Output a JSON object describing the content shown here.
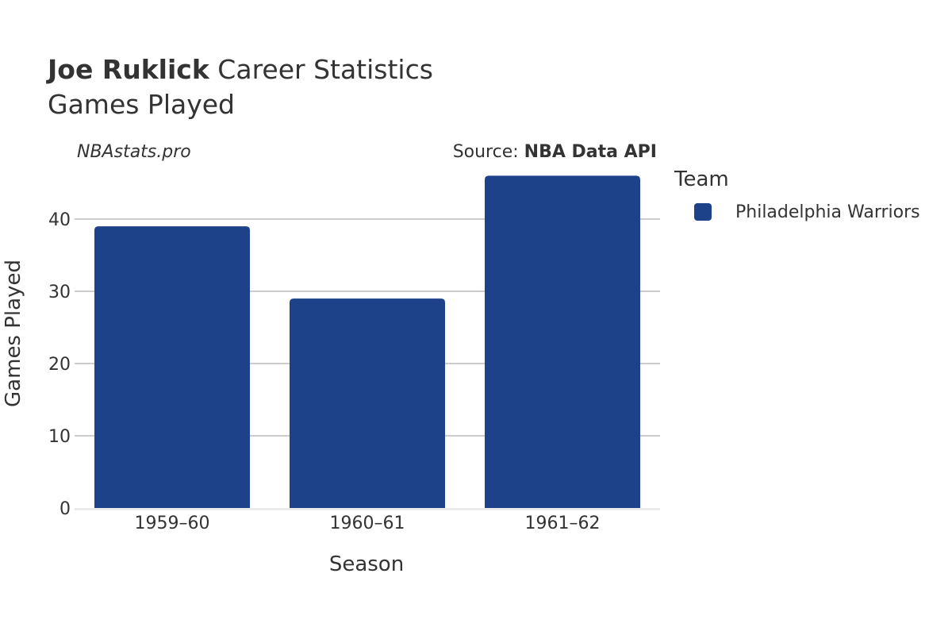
{
  "header": {
    "player_name": "Joe Ruklick",
    "title_suffix": " Career Statistics",
    "subtitle": "Games Played",
    "site": "NBAstats.pro",
    "source_prefix": "Source: ",
    "source_name": "NBA Data API"
  },
  "legend": {
    "title": "Team",
    "items": [
      {
        "label": "Philadelphia Warriors",
        "color": "#1d428a"
      }
    ]
  },
  "chart_data": {
    "type": "bar",
    "categories": [
      "1959–60",
      "1960–61",
      "1961–62"
    ],
    "series": [
      {
        "name": "Philadelphia Warriors",
        "values": [
          39,
          29,
          46
        ],
        "color": "#1d428a"
      }
    ],
    "xlabel": "Season",
    "ylabel": "Games Played",
    "ylim": [
      0,
      46
    ],
    "yticks": [
      0,
      10,
      20,
      30,
      40
    ],
    "grid": true,
    "legend_position": "right"
  }
}
